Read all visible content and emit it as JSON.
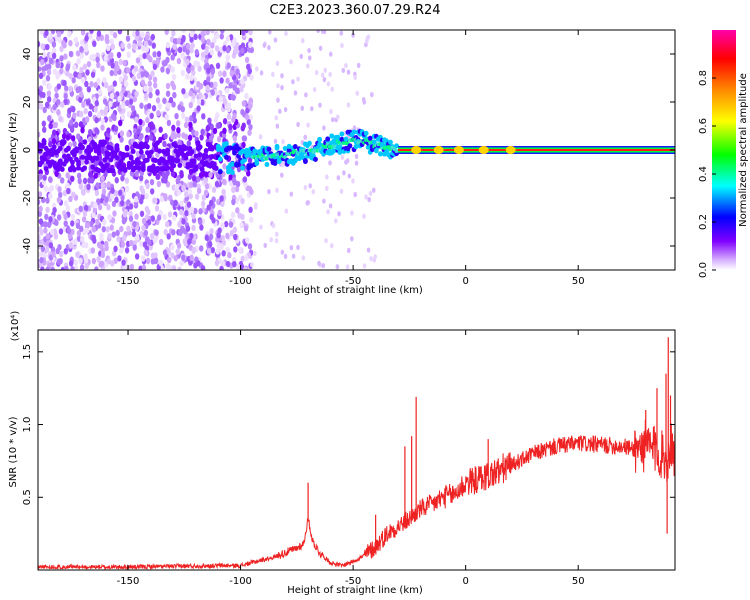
{
  "title": "C2E3.2023.360.07.29.R24",
  "chart_data": [
    {
      "type": "heatmap",
      "title": "C2E3.2023.360.07.29.R24",
      "xlabel": "Height of straight line (km)",
      "ylabel": "Frequency (Hz)",
      "xlim": [
        -190,
        93
      ],
      "ylim": [
        -50,
        50
      ],
      "xticks": [
        -150,
        -100,
        -50,
        0,
        50
      ],
      "yticks": [
        -40,
        -20,
        0,
        20,
        40
      ],
      "colorbar": {
        "label": "Normalized spectral amplitude",
        "range": [
          0,
          1
        ],
        "ticks": [
          0.0,
          0.2,
          0.4,
          0.6,
          0.8
        ],
        "colors": [
          "#ffffff",
          "#d9b3ff",
          "#8000ff",
          "#0000ff",
          "#00ffff",
          "#00ff00",
          "#ffff00",
          "#ff8000",
          "#ff0000",
          "#ff00aa"
        ]
      },
      "ridge": {
        "x": [
          -190,
          -150,
          -110,
          -100,
          -90,
          -80,
          -70,
          -60,
          -50,
          -45,
          -40,
          -35,
          -30,
          -20,
          -10,
          0,
          10,
          50,
          93
        ],
        "y": [
          -2,
          -3,
          -3,
          -4,
          -3,
          -2,
          -1,
          2,
          4,
          4,
          2,
          1,
          0,
          0,
          0,
          0,
          0,
          0,
          0
        ]
      }
    },
    {
      "type": "line",
      "xlabel": "Height of straight line (km)",
      "ylabel": "SNR (10 * v/v)",
      "multiplier": "(x10⁴)",
      "xlim": [
        -190,
        93
      ],
      "ylim": [
        0,
        1.65
      ],
      "xticks": [
        -150,
        -100,
        -50,
        0,
        50
      ],
      "yticks": [
        0.5,
        1.0,
        1.5
      ],
      "series": [
        {
          "color": "#ee2222",
          "x": [
            -190,
            -150,
            -110,
            -100,
            -95,
            -90,
            -85,
            -80,
            -75,
            -72,
            -70,
            -68,
            -65,
            -60,
            -55,
            -50,
            -45,
            -40,
            -35,
            -30,
            -25,
            -20,
            -15,
            -10,
            -5,
            0,
            5,
            10,
            15,
            20,
            25,
            30,
            40,
            50,
            60,
            70,
            75,
            80,
            85,
            88,
            90,
            91,
            93
          ],
          "y": [
            0.02,
            0.02,
            0.03,
            0.03,
            0.05,
            0.07,
            0.09,
            0.12,
            0.15,
            0.18,
            0.35,
            0.2,
            0.12,
            0.05,
            0.03,
            0.06,
            0.1,
            0.16,
            0.25,
            0.3,
            0.35,
            0.42,
            0.45,
            0.5,
            0.52,
            0.6,
            0.62,
            0.65,
            0.68,
            0.72,
            0.76,
            0.8,
            0.85,
            0.87,
            0.86,
            0.85,
            0.83,
            0.85,
            0.82,
            0.78,
            0.75,
            0.9,
            0.8
          ],
          "spikes": [
            {
              "x": -70,
              "y": 0.6
            },
            {
              "x": -40,
              "y": 0.38
            },
            {
              "x": -27,
              "y": 0.85
            },
            {
              "x": -24,
              "y": 0.92
            },
            {
              "x": -22,
              "y": 1.19
            },
            {
              "x": 10,
              "y": 0.9
            },
            {
              "x": 80,
              "y": 1.1
            },
            {
              "x": 85,
              "y": 1.25
            },
            {
              "x": 89,
              "y": 1.35
            },
            {
              "x": 90,
              "y": 1.6
            },
            {
              "x": 91,
              "y": 1.2
            },
            {
              "x": 89.5,
              "y": 0.25
            }
          ]
        }
      ]
    }
  ]
}
